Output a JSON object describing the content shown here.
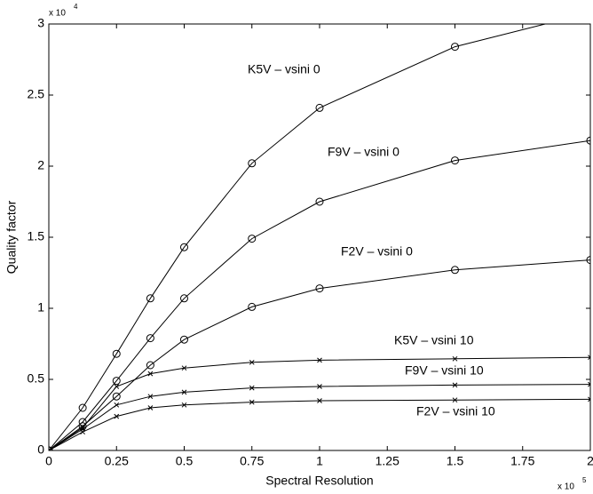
{
  "chart_data": {
    "type": "line",
    "x_label": "Spectral Resolution",
    "y_label": "Quality factor",
    "x_multiplier": {
      "text": "x 10",
      "exponent": "5"
    },
    "y_multiplier": {
      "text": "x 10",
      "exponent": "4"
    },
    "xlim": [
      0,
      2
    ],
    "ylim": [
      0,
      3
    ],
    "xticks": [
      0,
      0.25,
      0.5,
      0.75,
      1,
      1.25,
      1.5,
      1.75,
      2
    ],
    "yticks": [
      0,
      0.5,
      1,
      1.5,
      2,
      2.5,
      3
    ],
    "grid": false,
    "x": [
      0,
      0.125,
      0.25,
      0.375,
      0.5,
      0.75,
      1,
      1.5,
      2
    ],
    "series": [
      {
        "name": "K5V – vsini 0",
        "color": "#000000",
        "marker": "circle",
        "values": [
          0,
          0.3,
          0.68,
          1.07,
          1.43,
          2.02,
          2.41,
          2.84,
          3.08
        ]
      },
      {
        "name": "F9V – vsini 0",
        "color": "#000000",
        "marker": "circle",
        "values": [
          0,
          0.2,
          0.49,
          0.79,
          1.07,
          1.49,
          1.75,
          2.04,
          2.18
        ]
      },
      {
        "name": "F2V – vsini 0",
        "color": "#000000",
        "marker": "circle",
        "values": [
          0,
          0.17,
          0.38,
          0.6,
          0.78,
          1.01,
          1.14,
          1.27,
          1.34
        ]
      },
      {
        "name": "K5V – vsini 10",
        "color": "#000000",
        "marker": "x",
        "values": [
          0,
          0.16,
          0.45,
          0.54,
          0.58,
          0.62,
          0.635,
          0.645,
          0.655
        ]
      },
      {
        "name": "F9V – vsini 10",
        "color": "#000000",
        "marker": "x",
        "values": [
          0,
          0.15,
          0.32,
          0.38,
          0.41,
          0.44,
          0.45,
          0.46,
          0.465
        ]
      },
      {
        "name": "F2V – vsini 10",
        "color": "#000000",
        "marker": "x",
        "values": [
          0,
          0.13,
          0.24,
          0.3,
          0.32,
          0.34,
          0.35,
          0.355,
          0.36
        ]
      }
    ]
  }
}
